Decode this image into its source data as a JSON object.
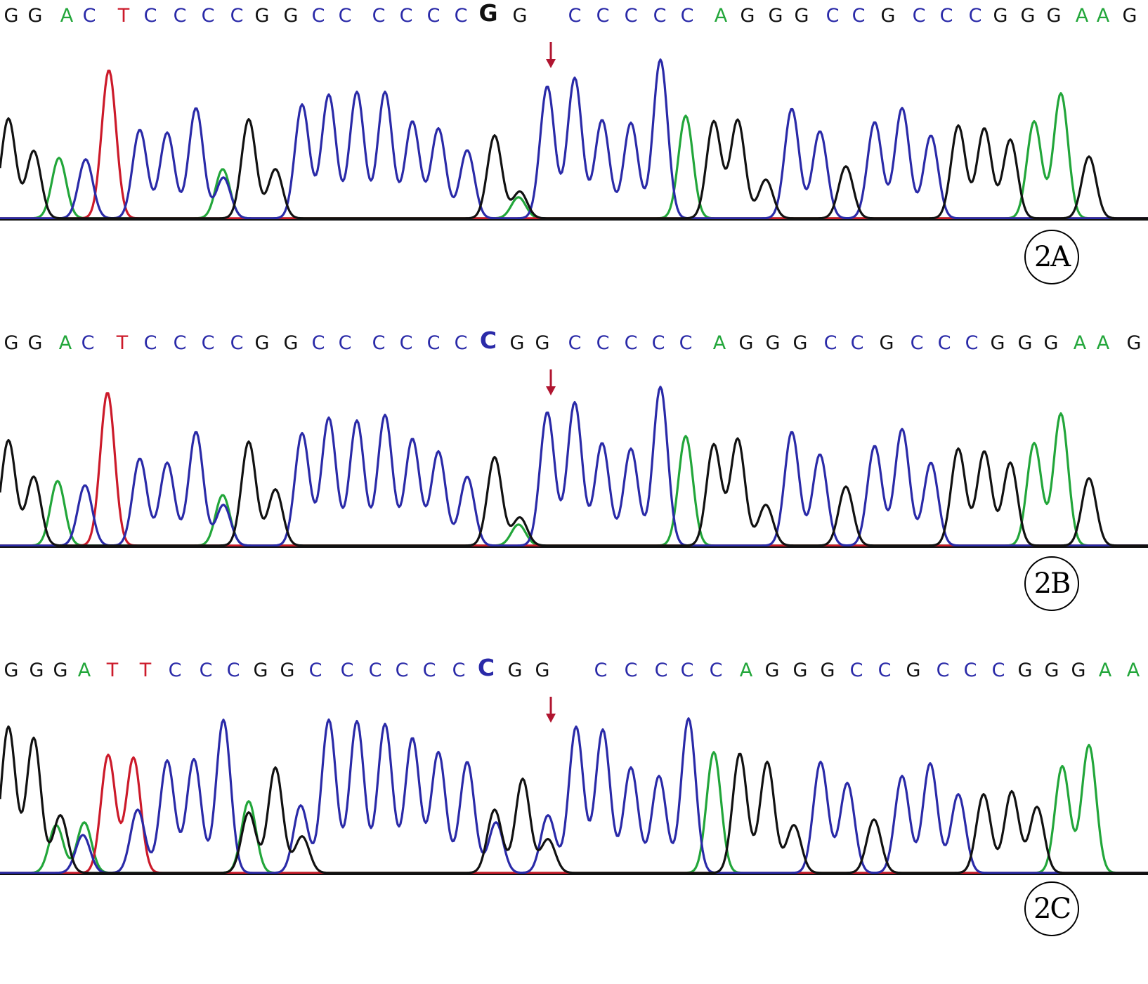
{
  "colors": {
    "A": "#22a63a",
    "C": "#2a2aa8",
    "G": "#111111",
    "T": "#cc1a2a",
    "arrow": "#b01530",
    "baseline": "#111111"
  },
  "panels": [
    {
      "label": "2A",
      "highlight_base_index": 17,
      "bases": [
        {
          "base": "G",
          "x": 16
        },
        {
          "base": "G",
          "x": 50
        },
        {
          "base": "A",
          "x": 95
        },
        {
          "base": "C",
          "x": 127
        },
        {
          "base": "T",
          "x": 176
        },
        {
          "base": "C",
          "x": 214
        },
        {
          "base": "C",
          "x": 256
        },
        {
          "base": "C",
          "x": 296
        },
        {
          "base": "C",
          "x": 337
        },
        {
          "base": "G",
          "x": 373
        },
        {
          "base": "G",
          "x": 414
        },
        {
          "base": "C",
          "x": 453
        },
        {
          "base": "C",
          "x": 491
        },
        {
          "base": "C",
          "x": 539
        },
        {
          "base": "C",
          "x": 578
        },
        {
          "base": "C",
          "x": 617
        },
        {
          "base": "C",
          "x": 656
        },
        {
          "base": "G",
          "x": 695
        },
        {
          "base": "G",
          "x": 740
        },
        {
          "base": "C",
          "x": 818
        },
        {
          "base": "C",
          "x": 858
        },
        {
          "base": "C",
          "x": 898
        },
        {
          "base": "C",
          "x": 939
        },
        {
          "base": "C",
          "x": 978
        },
        {
          "base": "A",
          "x": 1026
        },
        {
          "base": "G",
          "x": 1064
        },
        {
          "base": "G",
          "x": 1104
        },
        {
          "base": "G",
          "x": 1141
        },
        {
          "base": "C",
          "x": 1185
        },
        {
          "base": "C",
          "x": 1222
        },
        {
          "base": "G",
          "x": 1264
        },
        {
          "base": "C",
          "x": 1308
        },
        {
          "base": "C",
          "x": 1347
        },
        {
          "base": "C",
          "x": 1388
        },
        {
          "base": "G",
          "x": 1424
        },
        {
          "base": "G",
          "x": 1463
        },
        {
          "base": "G",
          "x": 1500
        },
        {
          "base": "A",
          "x": 1540
        },
        {
          "base": "A",
          "x": 1570
        },
        {
          "base": "G",
          "x": 1608
        }
      ]
    },
    {
      "label": "2B",
      "highlight_base_index": 17,
      "bases": [
        {
          "base": "G",
          "x": 16
        },
        {
          "base": "G",
          "x": 50
        },
        {
          "base": "A",
          "x": 93
        },
        {
          "base": "C",
          "x": 125
        },
        {
          "base": "T",
          "x": 174
        },
        {
          "base": "C",
          "x": 214
        },
        {
          "base": "C",
          "x": 256
        },
        {
          "base": "C",
          "x": 296
        },
        {
          "base": "C",
          "x": 337
        },
        {
          "base": "G",
          "x": 373
        },
        {
          "base": "G",
          "x": 414
        },
        {
          "base": "C",
          "x": 453
        },
        {
          "base": "C",
          "x": 491
        },
        {
          "base": "C",
          "x": 539
        },
        {
          "base": "C",
          "x": 578
        },
        {
          "base": "C",
          "x": 617
        },
        {
          "base": "C",
          "x": 656
        },
        {
          "base": "C",
          "x": 695
        },
        {
          "base": "G",
          "x": 736
        },
        {
          "base": "G",
          "x": 772
        },
        {
          "base": "C",
          "x": 818
        },
        {
          "base": "C",
          "x": 858
        },
        {
          "base": "C",
          "x": 898
        },
        {
          "base": "C",
          "x": 937
        },
        {
          "base": "C",
          "x": 976
        },
        {
          "base": "A",
          "x": 1024
        },
        {
          "base": "G",
          "x": 1062
        },
        {
          "base": "G",
          "x": 1100
        },
        {
          "base": "G",
          "x": 1139
        },
        {
          "base": "C",
          "x": 1182
        },
        {
          "base": "C",
          "x": 1220
        },
        {
          "base": "G",
          "x": 1262
        },
        {
          "base": "C",
          "x": 1305
        },
        {
          "base": "C",
          "x": 1344
        },
        {
          "base": "C",
          "x": 1383
        },
        {
          "base": "G",
          "x": 1420
        },
        {
          "base": "G",
          "x": 1459
        },
        {
          "base": "G",
          "x": 1496
        },
        {
          "base": "A",
          "x": 1537
        },
        {
          "base": "A",
          "x": 1570
        },
        {
          "base": "G",
          "x": 1614
        }
      ]
    },
    {
      "label": "2C",
      "highlight_base_index": 17,
      "bases": [
        {
          "base": "G",
          "x": 16
        },
        {
          "base": "G",
          "x": 52
        },
        {
          "base": "G",
          "x": 86
        },
        {
          "base": "A",
          "x": 120
        },
        {
          "base": "T",
          "x": 160
        },
        {
          "base": "T",
          "x": 207
        },
        {
          "base": "C",
          "x": 249
        },
        {
          "base": "C",
          "x": 293
        },
        {
          "base": "C",
          "x": 332
        },
        {
          "base": "G",
          "x": 371
        },
        {
          "base": "G",
          "x": 409
        },
        {
          "base": "C",
          "x": 449
        },
        {
          "base": "C",
          "x": 494
        },
        {
          "base": "C",
          "x": 534
        },
        {
          "base": "C",
          "x": 572
        },
        {
          "base": "C",
          "x": 611
        },
        {
          "base": "C",
          "x": 653
        },
        {
          "base": "C",
          "x": 692
        },
        {
          "base": "G",
          "x": 733
        },
        {
          "base": "G",
          "x": 772
        },
        {
          "base": "C",
          "x": 855
        },
        {
          "base": "C",
          "x": 898
        },
        {
          "base": "C",
          "x": 941
        },
        {
          "base": "C",
          "x": 978
        },
        {
          "base": "C",
          "x": 1019
        },
        {
          "base": "A",
          "x": 1062
        },
        {
          "base": "G",
          "x": 1099
        },
        {
          "base": "G",
          "x": 1139
        },
        {
          "base": "G",
          "x": 1178
        },
        {
          "base": "C",
          "x": 1219
        },
        {
          "base": "C",
          "x": 1259
        },
        {
          "base": "G",
          "x": 1300
        },
        {
          "base": "C",
          "x": 1342
        },
        {
          "base": "C",
          "x": 1381
        },
        {
          "base": "C",
          "x": 1421
        },
        {
          "base": "G",
          "x": 1459
        },
        {
          "base": "G",
          "x": 1497
        },
        {
          "base": "G",
          "x": 1535
        },
        {
          "base": "A",
          "x": 1573
        },
        {
          "base": "A",
          "x": 1613
        }
      ]
    }
  ]
}
